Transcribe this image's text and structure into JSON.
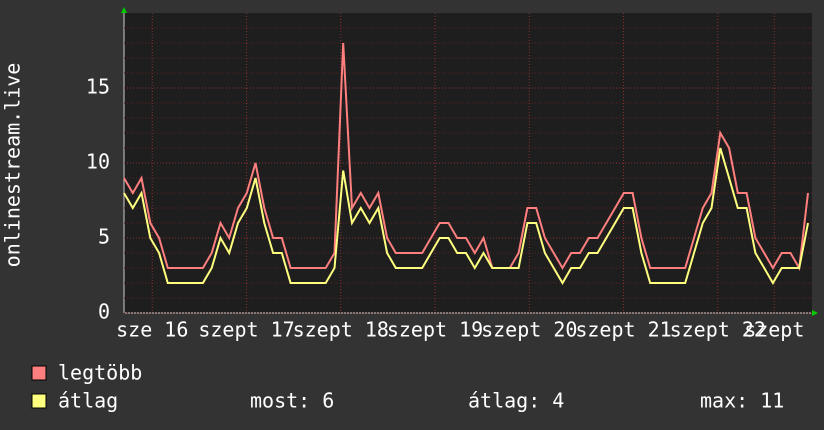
{
  "chart_data": {
    "type": "line",
    "y_label": "onlinestream.live",
    "ylim": [
      0,
      20
    ],
    "yticks": [
      0,
      5,
      10,
      15
    ],
    "xlim": [
      -0.3,
      7.0
    ],
    "xticks": [
      {
        "value": 0,
        "label": "sze 16"
      },
      {
        "value": 1,
        "label": "szept 17"
      },
      {
        "value": 2,
        "label": "szept 18"
      },
      {
        "value": 3,
        "label": "szept 19"
      },
      {
        "value": 4,
        "label": "szept 20"
      },
      {
        "value": 5,
        "label": "szept 21"
      },
      {
        "value": 6,
        "label": "szept 22"
      },
      {
        "value": 6.6,
        "label": "szept"
      }
    ],
    "grid": true,
    "series": [
      {
        "name": "legtöbb",
        "color": "#ff7f7f",
        "values": [
          9,
          8,
          9,
          6,
          5,
          3,
          3,
          3,
          3,
          3,
          4,
          6,
          5,
          7,
          8,
          10,
          7,
          5,
          5,
          3,
          3,
          3,
          3,
          3,
          4,
          18,
          7,
          8,
          7,
          8,
          5,
          4,
          4,
          4,
          4,
          5,
          6,
          6,
          5,
          5,
          4,
          5,
          3,
          3,
          3,
          4,
          7,
          7,
          5,
          4,
          3,
          4,
          4,
          5,
          5,
          6,
          7,
          8,
          8,
          5,
          3,
          3,
          3,
          3,
          3,
          5,
          7,
          8,
          12,
          11,
          8,
          8,
          5,
          4,
          3,
          4,
          4,
          3,
          8
        ]
      },
      {
        "name": "átlag",
        "color": "#ffff7f",
        "values": [
          8,
          7,
          8,
          5,
          4,
          2,
          2,
          2,
          2,
          2,
          3,
          5,
          4,
          6,
          7,
          9,
          6,
          4,
          4,
          2,
          2,
          2,
          2,
          2,
          3,
          9.5,
          6,
          7,
          6,
          7,
          4,
          3,
          3,
          3,
          3,
          4,
          5,
          5,
          4,
          4,
          3,
          4,
          3,
          3,
          3,
          3,
          6,
          6,
          4,
          3,
          2,
          3,
          3,
          4,
          4,
          5,
          6,
          7,
          7,
          4,
          2,
          2,
          2,
          2,
          2,
          4,
          6,
          7,
          11,
          9,
          7,
          7,
          4,
          3,
          2,
          3,
          3,
          3,
          6
        ]
      }
    ],
    "stats": [
      "most: 6",
      "átlag: 4",
      "max: 11"
    ]
  }
}
